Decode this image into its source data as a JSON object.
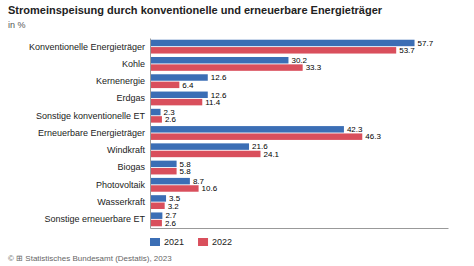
{
  "chart_data": {
    "type": "bar",
    "orientation": "horizontal",
    "title": "Stromeinspeisung durch konventionelle und erneuerbare Energieträger",
    "subtitle": "in %",
    "annotations": [
      "© ⊞ Statistisches Bundesamt (Destatis), 2023"
    ],
    "categories": [
      "Konventionelle Energieträger",
      "Kohle",
      "Kernenergie",
      "Erdgas",
      "Sonstige konventionelle ET",
      "Erneuerbare Energieträger",
      "Windkraft",
      "Biogas",
      "Photovoltaik",
      "Wasserkraft",
      "Sonstige erneuerbare ET"
    ],
    "series": [
      {
        "name": "2021",
        "color": "#3b6eb5",
        "values": [
          57.7,
          30.2,
          12.6,
          12.6,
          2.3,
          42.3,
          21.6,
          5.8,
          8.7,
          3.5,
          2.7
        ]
      },
      {
        "name": "2022",
        "color": "#d94f5c",
        "values": [
          53.7,
          33.3,
          6.4,
          11.4,
          2.6,
          46.3,
          24.1,
          5.8,
          10.6,
          3.2,
          2.6
        ]
      }
    ],
    "xlim": [
      0,
      65
    ],
    "tick_labels": "y",
    "data_labels": true,
    "legend": "lower left",
    "grid": false
  }
}
